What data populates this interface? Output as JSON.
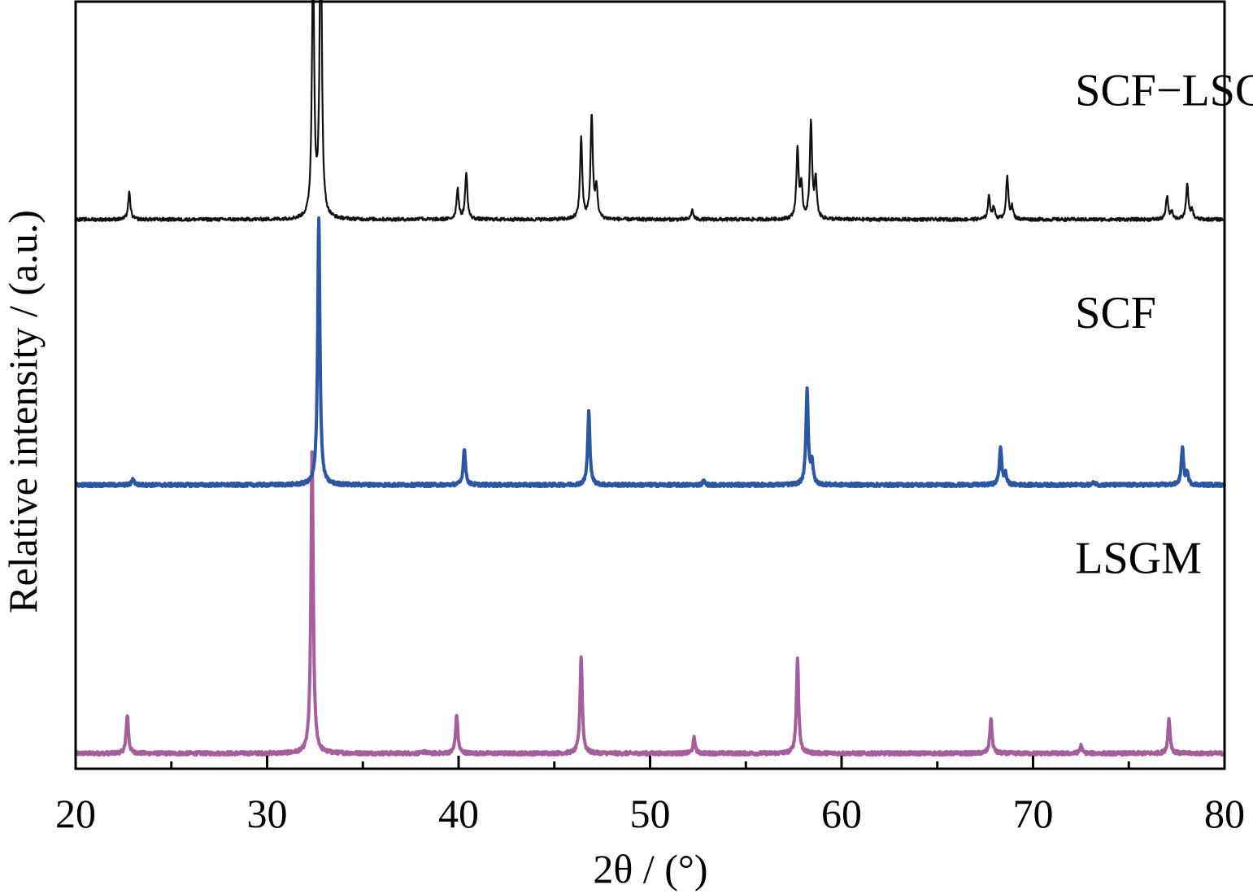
{
  "chart_data": {
    "type": "line",
    "title": "",
    "xlabel": "2θ / (°)",
    "ylabel": "Relative intensity / (a.u.)",
    "xlim": [
      20,
      80
    ],
    "xticks": [
      20,
      30,
      40,
      50,
      60,
      70,
      80
    ],
    "xtick_labels": [
      "20",
      "30",
      "40",
      "50",
      "60",
      "70",
      "80"
    ],
    "minor_xticks": [
      25,
      35,
      45,
      55,
      65,
      75
    ],
    "ylim": [
      0,
      100
    ],
    "y_ticks_shown": false,
    "grid": false,
    "legend": "none",
    "series": [
      {
        "name": "LSGM",
        "color": "#A55E9B",
        "baseline": 2,
        "peaks": [
          {
            "x": 22.7,
            "h": 5.0
          },
          {
            "x": 32.35,
            "h": 40.0
          },
          {
            "x": 38.2,
            "h": 0.3
          },
          {
            "x": 39.9,
            "h": 5.0
          },
          {
            "x": 46.4,
            "h": 12.6
          },
          {
            "x": 52.3,
            "h": 2.0
          },
          {
            "x": 57.7,
            "h": 12.4
          },
          {
            "x": 67.8,
            "h": 4.5
          },
          {
            "x": 72.5,
            "h": 1.0
          },
          {
            "x": 77.1,
            "h": 4.5
          }
        ]
      },
      {
        "name": "SCF",
        "color": "#2B57A2",
        "baseline": 37,
        "peaks": [
          {
            "x": 23.0,
            "h": 0.8
          },
          {
            "x": 32.7,
            "h": 35.0
          },
          {
            "x": 40.3,
            "h": 4.8
          },
          {
            "x": 46.8,
            "h": 9.5
          },
          {
            "x": 52.8,
            "h": 0.5
          },
          {
            "x": 58.2,
            "h": 12.4
          },
          {
            "x": 58.45,
            "h": 3.0
          },
          {
            "x": 68.3,
            "h": 5.0
          },
          {
            "x": 68.55,
            "h": 1.5
          },
          {
            "x": 73.2,
            "h": 0.4
          },
          {
            "x": 77.8,
            "h": 4.8
          },
          {
            "x": 78.05,
            "h": 1.5
          }
        ]
      },
      {
        "name": "SCF−LSGM",
        "color": "#111111",
        "baseline": 71.6,
        "peaks": [
          {
            "x": 22.8,
            "h": 3.5
          },
          {
            "x": 32.4,
            "h": 34.0
          },
          {
            "x": 32.8,
            "h": 40.0
          },
          {
            "x": 38.0,
            "h": 0.3
          },
          {
            "x": 39.95,
            "h": 4.0
          },
          {
            "x": 40.4,
            "h": 6.0
          },
          {
            "x": 46.4,
            "h": 10.5
          },
          {
            "x": 46.95,
            "h": 13.5
          },
          {
            "x": 47.2,
            "h": 4.0
          },
          {
            "x": 52.2,
            "h": 1.2
          },
          {
            "x": 57.7,
            "h": 9.0
          },
          {
            "x": 57.9,
            "h": 4.0
          },
          {
            "x": 58.4,
            "h": 12.5
          },
          {
            "x": 58.65,
            "h": 5.0
          },
          {
            "x": 67.7,
            "h": 3.0
          },
          {
            "x": 67.95,
            "h": 1.5
          },
          {
            "x": 68.65,
            "h": 5.5
          },
          {
            "x": 68.9,
            "h": 1.5
          },
          {
            "x": 77.0,
            "h": 3.0
          },
          {
            "x": 77.25,
            "h": 1.0
          },
          {
            "x": 78.05,
            "h": 4.6
          },
          {
            "x": 78.3,
            "h": 1.2
          }
        ]
      }
    ],
    "annotations": [
      {
        "text": "SCF−LSGM",
        "series": "SCF−LSGM",
        "x": 72.2,
        "y": 86.5
      },
      {
        "text": "SCF",
        "series": "SCF",
        "x": 72.2,
        "y": 57.5
      },
      {
        "text": "LSGM",
        "series": "LSGM",
        "x": 72.2,
        "y": 25.5
      }
    ]
  }
}
